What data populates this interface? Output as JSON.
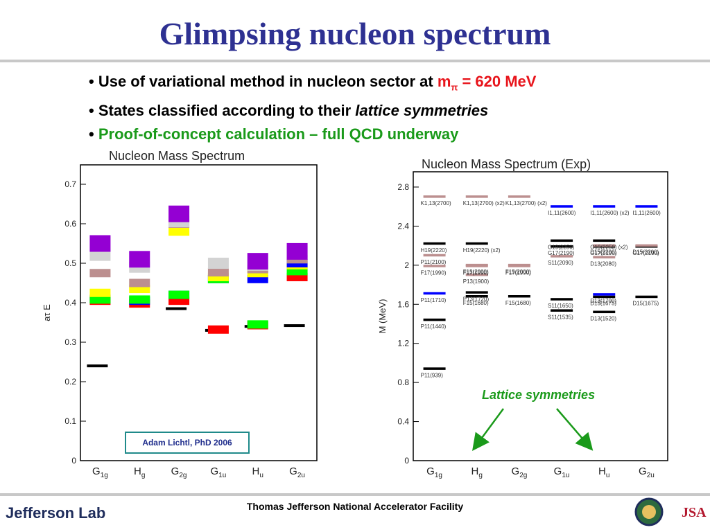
{
  "slide": {
    "title": "Glimpsing nucleon spectrum",
    "bullets": [
      {
        "bullet": "•",
        "text": "Use of variational method in nucleon sector at ",
        "highlight": "m",
        "sub": "π",
        "tail": " = 620 MeV"
      },
      {
        "bullet": "•",
        "text": "States classified according to their ",
        "italic": "lattice symmetries"
      },
      {
        "bullet": "•",
        "text": "Proof-of-concept calculation – full QCD underway"
      }
    ],
    "credit": "Adam Lichtl, PhD 2006",
    "lattice_label": "Lattice symmetries",
    "footer_center": "Thomas Jefferson National Accelerator Facility",
    "footer_logo": "Jefferson Lab",
    "jsa_logo": "JSA",
    "colors": {
      "title": "#2e3192",
      "highlight": "#e8141b",
      "green": "#1a9a1a"
    }
  },
  "chart_data": [
    {
      "type": "scatter",
      "title": "Nucleon Mass Spectrum",
      "ylabel": "aτ E",
      "ylim": [
        0,
        0.7
      ],
      "yticks": [
        "0",
        "0.1",
        "0.2",
        "0.3",
        "0.4",
        "0.5",
        "0.6",
        "0.7"
      ],
      "categories": [
        "G1g",
        "Hg",
        "G2g",
        "G1u",
        "Hu",
        "G2u"
      ],
      "levels": [
        {
          "cat": "G1g",
          "y": 0.24,
          "color": "#000000"
        },
        {
          "cat": "G1g",
          "y": 0.41,
          "color": "#0000ff"
        },
        {
          "cat": "G1g",
          "y": 0.405,
          "color": "#ff0000"
        },
        {
          "cat": "G1g",
          "y": 0.408,
          "color": "#00ff00"
        },
        {
          "cat": "G1g",
          "y": 0.425,
          "color": "#ffff00"
        },
        {
          "cat": "G1g",
          "y": 0.475,
          "color": "#bc8f8f"
        },
        {
          "cat": "G1g",
          "y": 0.52,
          "color": "#d3d3d3"
        },
        {
          "cat": "G1g",
          "y": 0.55,
          "color": "#9400d3"
        },
        {
          "cat": "Hg",
          "y": 0.398,
          "color": "#ff0000"
        },
        {
          "cat": "Hg",
          "y": 0.405,
          "color": "#0000ff"
        },
        {
          "cat": "Hg",
          "y": 0.408,
          "color": "#00ff00"
        },
        {
          "cat": "Hg",
          "y": 0.435,
          "color": "#ffff00"
        },
        {
          "cat": "Hg",
          "y": 0.45,
          "color": "#bc8f8f"
        },
        {
          "cat": "Hg",
          "y": 0.49,
          "color": "#d3d3d3"
        },
        {
          "cat": "Hg",
          "y": 0.51,
          "color": "#9400d3"
        },
        {
          "cat": "G2g",
          "y": 0.385,
          "color": "#000000"
        },
        {
          "cat": "G2g",
          "y": 0.405,
          "color": "#ff0000"
        },
        {
          "cat": "G2g",
          "y": 0.42,
          "color": "#0000ff"
        },
        {
          "cat": "G2g",
          "y": 0.42,
          "color": "#00ff00"
        },
        {
          "cat": "G2g",
          "y": 0.58,
          "color": "#ffff00"
        },
        {
          "cat": "G2g",
          "y": 0.6,
          "color": "#bc8f8f"
        },
        {
          "cat": "G2g",
          "y": 0.605,
          "color": "#d3d3d3"
        },
        {
          "cat": "G2g",
          "y": 0.625,
          "color": "#9400d3"
        },
        {
          "cat": "G1u",
          "y": 0.33,
          "color": "#000000"
        },
        {
          "cat": "G1u",
          "y": 0.332,
          "color": "#ff0000"
        },
        {
          "cat": "G1u",
          "y": 0.46,
          "color": "#0000ff"
        },
        {
          "cat": "G1u",
          "y": 0.46,
          "color": "#00ff00"
        },
        {
          "cat": "G1u",
          "y": 0.465,
          "color": "#ffff00"
        },
        {
          "cat": "G1u",
          "y": 0.477,
          "color": "#bc8f8f"
        },
        {
          "cat": "G1u",
          "y": 0.5,
          "color": "#d3d3d3"
        },
        {
          "cat": "Hu",
          "y": 0.34,
          "color": "#000000"
        },
        {
          "cat": "Hu",
          "y": 0.343,
          "color": "#ff0000"
        },
        {
          "cat": "Hu",
          "y": 0.345,
          "color": "#00ff00"
        },
        {
          "cat": "Hu",
          "y": 0.46,
          "color": "#0000ff"
        },
        {
          "cat": "Hu",
          "y": 0.475,
          "color": "#ffff00"
        },
        {
          "cat": "Hu",
          "y": 0.485,
          "color": "#bc8f8f"
        },
        {
          "cat": "Hu",
          "y": 0.495,
          "color": "#d3d3d3"
        },
        {
          "cat": "Hu",
          "y": 0.505,
          "color": "#9400d3"
        },
        {
          "cat": "G2u",
          "y": 0.342,
          "color": "#000000"
        },
        {
          "cat": "G2u",
          "y": 0.465,
          "color": "#ff0000"
        },
        {
          "cat": "G2u",
          "y": 0.48,
          "color": "#00ff00"
        },
        {
          "cat": "G2u",
          "y": 0.495,
          "color": "#ffff00"
        },
        {
          "cat": "G2u",
          "y": 0.5,
          "color": "#0000ff"
        },
        {
          "cat": "G2u",
          "y": 0.51,
          "color": "#bc8f8f"
        },
        {
          "cat": "G2u",
          "y": 0.53,
          "color": "#d3d3d3"
        },
        {
          "cat": "G2u",
          "y": 0.53,
          "color": "#9400d3"
        }
      ]
    },
    {
      "type": "scatter",
      "title": "Nucleon Mass Spectrum (Exp)",
      "ylabel": "M (MeV)",
      "ylim": [
        0,
        2.8
      ],
      "yticks": [
        "0",
        "0.4",
        "0.8",
        "1.2",
        "1.6",
        "2",
        "2.4",
        "2.8"
      ],
      "categories": [
        "G1g",
        "Hg",
        "G2g",
        "G1u",
        "Hu",
        "G2u"
      ],
      "levels": [
        {
          "cat": "G1g",
          "y": 0.94,
          "color": "#000000",
          "label": "P11(939)"
        },
        {
          "cat": "G1g",
          "y": 1.44,
          "color": "#000000",
          "label": "P11(1440)"
        },
        {
          "cat": "G1g",
          "y": 1.71,
          "color": "#0000ff",
          "label": "P11(1710)"
        },
        {
          "cat": "G1g",
          "y": 1.99,
          "color": "#bc8f8f",
          "label": "F17(1990)"
        },
        {
          "cat": "G1g",
          "y": 2.1,
          "color": "#bc8f8f",
          "label": "P11(2100)"
        },
        {
          "cat": "G1g",
          "y": 2.22,
          "color": "#000000",
          "label": "H19(2220)"
        },
        {
          "cat": "G1g",
          "y": 2.7,
          "color": "#bc8f8f",
          "label": "K1,13(2700)"
        },
        {
          "cat": "Hg",
          "y": 1.68,
          "color": "#000000",
          "label": "F15(1680)"
        },
        {
          "cat": "Hg",
          "y": 1.72,
          "color": "#000000",
          "label": "P13(1720)"
        },
        {
          "cat": "Hg",
          "y": 1.9,
          "color": "#bc8f8f",
          "label": "P13(1900)"
        },
        {
          "cat": "Hg",
          "y": 1.99,
          "color": "#bc8f8f",
          "label": "F17(1990)"
        },
        {
          "cat": "Hg",
          "y": 2.0,
          "color": "#bc8f8f",
          "label": "F15(2000)"
        },
        {
          "cat": "Hg",
          "y": 2.22,
          "color": "#000000",
          "label": "H19(2220) (x2)"
        },
        {
          "cat": "Hg",
          "y": 2.7,
          "color": "#bc8f8f",
          "label": "K1,13(2700) (x2)"
        },
        {
          "cat": "G2g",
          "y": 1.68,
          "color": "#000000",
          "label": "F15(1680)"
        },
        {
          "cat": "G2g",
          "y": 1.99,
          "color": "#bc8f8f",
          "label": "F17(1990)"
        },
        {
          "cat": "G2g",
          "y": 2.0,
          "color": "#bc8f8f",
          "label": "F15(2000)"
        },
        {
          "cat": "G2g",
          "y": 2.7,
          "color": "#bc8f8f",
          "label": "K1,13(2700) (x2)"
        },
        {
          "cat": "G1u",
          "y": 1.535,
          "color": "#000000",
          "label": "S11(1535)"
        },
        {
          "cat": "G1u",
          "y": 1.65,
          "color": "#000000",
          "label": "S11(1650)"
        },
        {
          "cat": "G1u",
          "y": 2.09,
          "color": "#bc8f8f",
          "label": "S11(2090)"
        },
        {
          "cat": "G1u",
          "y": 2.19,
          "color": "#000000",
          "label": "G17(2190)"
        },
        {
          "cat": "G1u",
          "y": 2.25,
          "color": "#000000",
          "label": "G19(2250)"
        },
        {
          "cat": "G1u",
          "y": 2.6,
          "color": "#0000ff",
          "label": "I1,11(2600)"
        },
        {
          "cat": "Hu",
          "y": 1.52,
          "color": "#000000",
          "label": "D13(1520)"
        },
        {
          "cat": "Hu",
          "y": 1.675,
          "color": "#000000",
          "label": "D15(1675)"
        },
        {
          "cat": "Hu",
          "y": 1.7,
          "color": "#0000ff",
          "label": "D13(1700)"
        },
        {
          "cat": "Hu",
          "y": 2.08,
          "color": "#bc8f8f",
          "label": "D13(2080)"
        },
        {
          "cat": "Hu",
          "y": 2.19,
          "color": "#000000",
          "label": "G17(2190)"
        },
        {
          "cat": "Hu",
          "y": 2.2,
          "color": "#bc8f8f",
          "label": "D15(2200)"
        },
        {
          "cat": "Hu",
          "y": 2.25,
          "color": "#000000",
          "label": "G19(2250) (x2)"
        },
        {
          "cat": "Hu",
          "y": 2.6,
          "color": "#0000ff",
          "label": "I1,11(2600) (x2)"
        },
        {
          "cat": "G2u",
          "y": 1.675,
          "color": "#000000",
          "label": "D15(1675)"
        },
        {
          "cat": "G2u",
          "y": 2.19,
          "color": "#000000",
          "label": "G17(2190)"
        },
        {
          "cat": "G2u",
          "y": 2.2,
          "color": "#bc8f8f",
          "label": "D15(2200)"
        },
        {
          "cat": "G2u",
          "y": 2.6,
          "color": "#0000ff",
          "label": "I1,11(2600)"
        }
      ]
    }
  ]
}
